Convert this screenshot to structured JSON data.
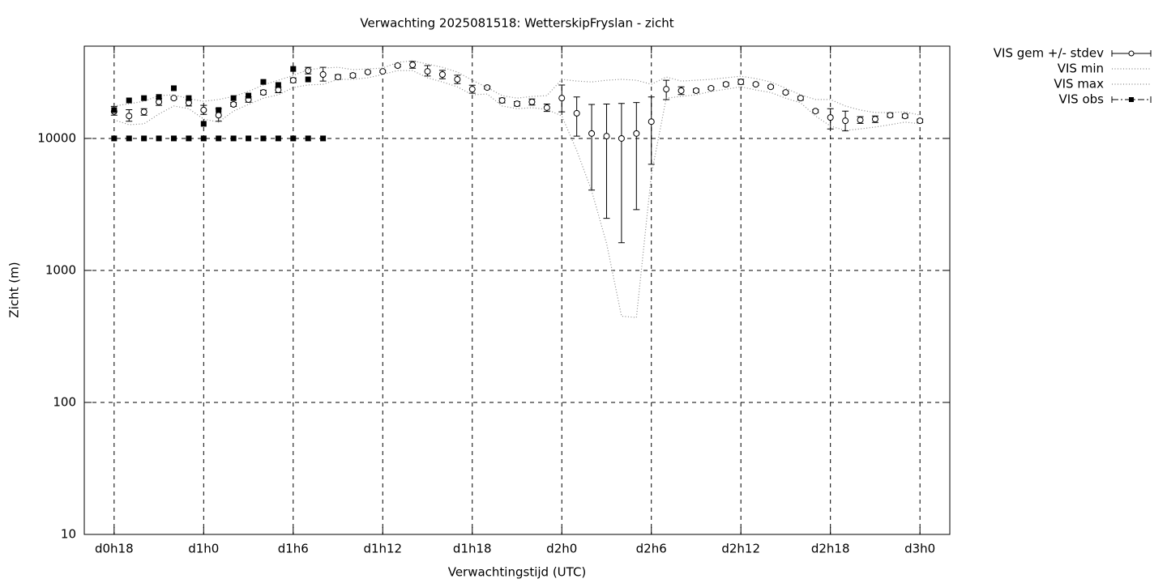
{
  "chart_data": {
    "type": "errorbar",
    "title": "Verwachting 2025081518: WetterskipFryslan - zicht",
    "xlabel": "Verwachtingstijd (UTC)",
    "ylabel": "Zicht (m)",
    "log_y": true,
    "grid": true,
    "legend": "outside-right",
    "xlim": [
      16,
      74
    ],
    "xticks": [
      {
        "value": 18,
        "label": "d0h18"
      },
      {
        "value": 24,
        "label": "d1h0"
      },
      {
        "value": 30,
        "label": "d1h6"
      },
      {
        "value": 36,
        "label": "d1h12"
      },
      {
        "value": 42,
        "label": "d1h18"
      },
      {
        "value": 48,
        "label": "d2h0"
      },
      {
        "value": 54,
        "label": "d2h6"
      },
      {
        "value": 60,
        "label": "d2h12"
      },
      {
        "value": 66,
        "label": "d2h18"
      },
      {
        "value": 72,
        "label": "d3h0"
      }
    ],
    "ylim": [
      10,
      50000
    ],
    "yticks": [
      10,
      100,
      1000,
      10000
    ],
    "x": [
      18,
      19,
      20,
      21,
      22,
      23,
      24,
      25,
      26,
      27,
      28,
      29,
      30,
      31,
      32,
      33,
      34,
      35,
      36,
      37,
      38,
      39,
      40,
      41,
      42,
      43,
      44,
      45,
      46,
      47,
      48,
      49,
      50,
      51,
      52,
      53,
      54,
      55,
      56,
      57,
      58,
      59,
      60,
      61,
      62,
      63,
      64,
      65,
      66,
      67,
      68,
      69,
      70,
      71,
      72
    ],
    "series": [
      {
        "name": "VIS gem +/- stdev",
        "style": "errorbar",
        "color": "#000000",
        "values": [
          16000,
          14800,
          15900,
          18900,
          20200,
          18600,
          16400,
          15000,
          18100,
          19700,
          22300,
          23300,
          27600,
          32700,
          30500,
          29200,
          30000,
          31800,
          32200,
          35600,
          36100,
          32200,
          30500,
          28000,
          23600,
          24300,
          19400,
          18300,
          18900,
          17100,
          20200,
          15500,
          10900,
          10400,
          10000,
          10900,
          13400,
          23600,
          23000,
          23000,
          24000,
          25700,
          26800,
          25700,
          24600,
          22300,
          20200,
          16100,
          14400,
          13600,
          13800,
          14000,
          15000,
          14800,
          13600
        ],
        "low": [
          15000,
          13500,
          15000,
          17800,
          19800,
          17600,
          15200,
          13500,
          17500,
          18800,
          21500,
          22200,
          26500,
          30800,
          27200,
          28000,
          29000,
          31200,
          31600,
          34800,
          34000,
          29700,
          28300,
          26000,
          22000,
          23700,
          18600,
          17600,
          17900,
          16000,
          15900,
          10400,
          4060,
          2480,
          1620,
          2890,
          6370,
          19700,
          21500,
          22300,
          23500,
          25000,
          25700,
          25200,
          24100,
          21800,
          19500,
          15700,
          11800,
          11400,
          13000,
          13200,
          14500,
          14300,
          13200
        ],
        "high": [
          17500,
          16500,
          16800,
          20000,
          20600,
          19600,
          17800,
          16800,
          18700,
          20600,
          23200,
          24400,
          28700,
          34600,
          34600,
          30400,
          31000,
          32400,
          32800,
          36400,
          38300,
          35600,
          32800,
          30100,
          25300,
          24900,
          20200,
          19000,
          19900,
          18200,
          25400,
          20600,
          18100,
          18200,
          18400,
          18700,
          20600,
          27600,
          24600,
          23700,
          24500,
          26500,
          28000,
          26200,
          25100,
          22800,
          20800,
          16500,
          16800,
          16100,
          14600,
          14800,
          15500,
          15300,
          14000
        ]
      },
      {
        "name": "VIS min",
        "style": "dotted",
        "color": "#8a8a8a",
        "values": [
          13800,
          12700,
          12900,
          15300,
          17600,
          16800,
          14000,
          13300,
          16100,
          18100,
          20200,
          21400,
          24300,
          25400,
          25700,
          28000,
          28000,
          28800,
          30500,
          32700,
          32700,
          28800,
          26800,
          24600,
          21400,
          21700,
          17600,
          16800,
          17100,
          16600,
          14800,
          8090,
          4000,
          1600,
          450,
          440,
          5300,
          20200,
          20800,
          21400,
          22700,
          23600,
          24600,
          23300,
          22300,
          20200,
          18600,
          14800,
          12400,
          11500,
          11800,
          12200,
          12700,
          13300,
          12900
        ]
      },
      {
        "name": "VIS max",
        "style": "dotted",
        "color": "#8a8a8a",
        "values": [
          17600,
          18300,
          19100,
          21100,
          21400,
          20000,
          19100,
          19700,
          20800,
          22700,
          25400,
          27600,
          30000,
          33200,
          34100,
          34600,
          33200,
          33600,
          34100,
          37700,
          38700,
          36600,
          34600,
          31800,
          27600,
          24300,
          21100,
          20200,
          20800,
          21100,
          28000,
          27200,
          26800,
          27600,
          28000,
          27600,
          25700,
          29200,
          27200,
          27600,
          28000,
          28800,
          29600,
          28400,
          26800,
          24000,
          21400,
          19700,
          19700,
          17600,
          16400,
          15700,
          15700,
          15900,
          15000
        ]
      },
      {
        "name": "VIS obs",
        "style": "points",
        "color": "#000000",
        "x": [
          18,
          19,
          20,
          21,
          22,
          23,
          24,
          25,
          26,
          27,
          28,
          29,
          30,
          31,
          18,
          19,
          20,
          21,
          22,
          23,
          24,
          25,
          26,
          27,
          28,
          29,
          30,
          31,
          32
        ],
        "values": [
          16400,
          19400,
          20200,
          20600,
          24000,
          20200,
          12900,
          16400,
          20200,
          21100,
          26800,
          25400,
          33600,
          28000,
          10000,
          10000,
          10000,
          10000,
          10000,
          10000,
          10000,
          10000,
          10000,
          10000,
          10000,
          10000,
          10000,
          10000,
          10000
        ]
      }
    ]
  }
}
